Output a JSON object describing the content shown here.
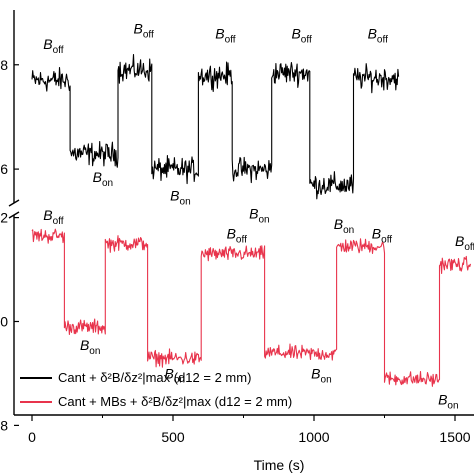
{
  "chart_data": {
    "type": "line",
    "xlabel": "Time (s)",
    "x_ticks": [
      "0",
      "500",
      "1000",
      "1500"
    ],
    "xlim": [
      -25,
      1555
    ],
    "top_panel": {
      "y_ticks": [
        "8",
        "6"
      ],
      "ylim": [
        5.35,
        9.05
      ],
      "series": {
        "name": "Cant + δ²B/δz²|max (d12 = 2 mm)",
        "color": "#000000",
        "segments": [
          {
            "x0": 0,
            "x1": 135,
            "level": 7.7
          },
          {
            "x0": 135,
            "x1": 305,
            "level": 6.3
          },
          {
            "x0": 305,
            "x1": 425,
            "level": 7.9
          },
          {
            "x0": 425,
            "x1": 590,
            "level": 6.0
          },
          {
            "x0": 590,
            "x1": 710,
            "level": 7.8
          },
          {
            "x0": 710,
            "x1": 850,
            "level": 6.0
          },
          {
            "x0": 850,
            "x1": 985,
            "level": 7.85
          },
          {
            "x0": 985,
            "x1": 1140,
            "level": 5.7
          },
          {
            "x0": 1140,
            "x1": 1300,
            "level": 7.75
          }
        ]
      },
      "annotations": [
        {
          "base": "B",
          "sub": "off",
          "x": 40,
          "y": 8.3
        },
        {
          "base": "B",
          "sub": "off",
          "x": 360,
          "y": 8.6
        },
        {
          "base": "B",
          "sub": "off",
          "x": 650,
          "y": 8.5
        },
        {
          "base": "B",
          "sub": "off",
          "x": 920,
          "y": 8.5
        },
        {
          "base": "B",
          "sub": "off",
          "x": 1190,
          "y": 8.5
        },
        {
          "base": "B",
          "sub": "on",
          "x": 215,
          "y": 5.75
        },
        {
          "base": "B",
          "sub": "on",
          "x": 490,
          "y": 5.4
        },
        {
          "base": "B",
          "sub": "on",
          "x": 770,
          "y": 5.05
        },
        {
          "base": "B",
          "sub": "on",
          "x": 1070,
          "y": 4.85
        }
      ]
    },
    "bottom_panel": {
      "y_ticks": [
        "2",
        "0",
        "8"
      ],
      "ylim": [
        -1.8,
        2.05
      ],
      "series": {
        "name": "Cant + MBs + δ²B/δz²|max (d12 = 2 mm)",
        "color": "#e8344c",
        "segments": [
          {
            "x0": 0,
            "x1": 115,
            "level": 1.65
          },
          {
            "x0": 115,
            "x1": 260,
            "level": -0.1
          },
          {
            "x0": 260,
            "x1": 410,
            "level": 1.5
          },
          {
            "x0": 410,
            "x1": 600,
            "level": -0.7
          },
          {
            "x0": 600,
            "x1": 825,
            "level": 1.3
          },
          {
            "x0": 825,
            "x1": 1080,
            "level": -0.6
          },
          {
            "x0": 1080,
            "x1": 1250,
            "level": 1.45
          },
          {
            "x0": 1250,
            "x1": 1445,
            "level": -1.1
          },
          {
            "x0": 1445,
            "x1": 1555,
            "level": 1.1
          }
        ]
      },
      "annotations": [
        {
          "base": "B",
          "sub": "off",
          "x": 40,
          "y": 1.95
        },
        {
          "base": "B",
          "sub": "off",
          "x": 690,
          "y": 1.6
        },
        {
          "base": "B",
          "sub": "off",
          "x": 1205,
          "y": 1.6
        },
        {
          "base": "B",
          "sub": "off",
          "x": 1500,
          "y": 1.45
        },
        {
          "base": "B",
          "sub": "on",
          "x": 170,
          "y": -0.55
        },
        {
          "base": "B",
          "sub": "on",
          "x": 470,
          "y": -1.1
        },
        {
          "base": "B",
          "sub": "on",
          "x": 990,
          "y": -1.1
        },
        {
          "base": "B",
          "sub": "on",
          "x": 1440,
          "y": -1.6
        }
      ]
    },
    "legend": [
      {
        "label": "Cant  + δ²B/δz²|max  (d12 = 2 mm)",
        "color": "#000000"
      },
      {
        "label": "Cant + MBs + δ²B/δz²|max  (d12 = 2 mm)",
        "color": "#e8344c"
      }
    ],
    "legend_placement": "lower-left of bottom panel"
  }
}
